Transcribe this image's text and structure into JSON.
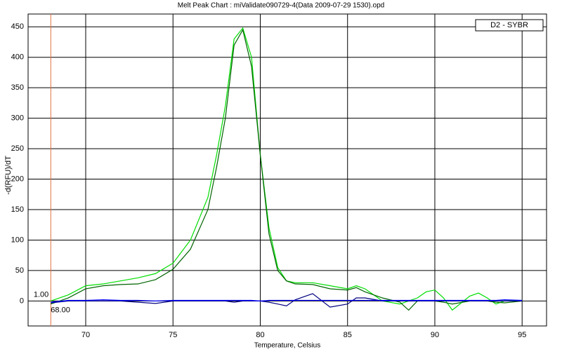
{
  "chart_data": {
    "type": "line",
    "title": "Melt Peak Chart : miValidate090729-4(Data 2009-07-29 1530).opd",
    "x_label": "Temperature, Celsius",
    "y_label": "-d(RFU)/dT",
    "legend": "D2 - SYBR",
    "x": [
      68,
      69,
      70,
      71,
      72,
      73,
      74,
      75,
      76,
      77,
      77.5,
      78,
      78.5,
      79,
      79.5,
      80,
      80.5,
      81,
      81.5,
      82,
      83,
      84,
      85,
      85.5,
      86,
      87,
      88,
      88.5,
      89,
      89.5,
      90,
      90.5,
      91,
      92,
      92.5,
      93,
      93.5,
      94,
      95
    ],
    "series": [
      {
        "color": "#00dd00",
        "values": [
          0,
          10,
          25,
          28,
          33,
          38,
          45,
          62,
          100,
          170,
          240,
          320,
          430,
          448,
          400,
          240,
          120,
          55,
          33,
          30,
          30,
          25,
          20,
          25,
          20,
          0,
          -5,
          0,
          5,
          15,
          18,
          5,
          -15,
          8,
          13,
          5,
          -5,
          0,
          1
        ]
      },
      {
        "color": "#006400",
        "values": [
          -5,
          5,
          20,
          25,
          27,
          28,
          35,
          52,
          85,
          150,
          220,
          300,
          420,
          445,
          385,
          240,
          110,
          50,
          33,
          28,
          27,
          20,
          18,
          22,
          15,
          5,
          -2,
          -15,
          0,
          0,
          0,
          -2,
          -5,
          0,
          0,
          0,
          -2,
          -3,
          0
        ]
      },
      {
        "color": "#000080",
        "values": [
          -3,
          0,
          0,
          0,
          0,
          -2,
          -4,
          0,
          0,
          0,
          0,
          0,
          -2,
          0,
          0,
          0,
          -2,
          -5,
          -8,
          2,
          12,
          -10,
          -5,
          5,
          5,
          0,
          0,
          0,
          0,
          0,
          0,
          0,
          0,
          0,
          0,
          0,
          0,
          0,
          0
        ]
      },
      {
        "color": "#0000ff",
        "values": [
          -2,
          1,
          1,
          2,
          1,
          1,
          0,
          1,
          1,
          1,
          1,
          1,
          1,
          1,
          1,
          0,
          1,
          1,
          1,
          1,
          1,
          1,
          1,
          1,
          1,
          1,
          1,
          1,
          1,
          1,
          1,
          1,
          1,
          1,
          1,
          1,
          1,
          2,
          1
        ]
      }
    ],
    "marker": {
      "color": "#e07040",
      "x": {
        "value": 68,
        "label": "68.00"
      },
      "y": {
        "value": 1,
        "label": "1.00"
      }
    },
    "xlim": [
      66.7,
      96.4
    ],
    "ylim": [
      -41,
      471
    ],
    "xticks": [
      70,
      75,
      80,
      85,
      90,
      95
    ],
    "yticks": [
      0,
      50,
      100,
      150,
      200,
      250,
      300,
      350,
      400,
      450
    ],
    "grid": true
  }
}
